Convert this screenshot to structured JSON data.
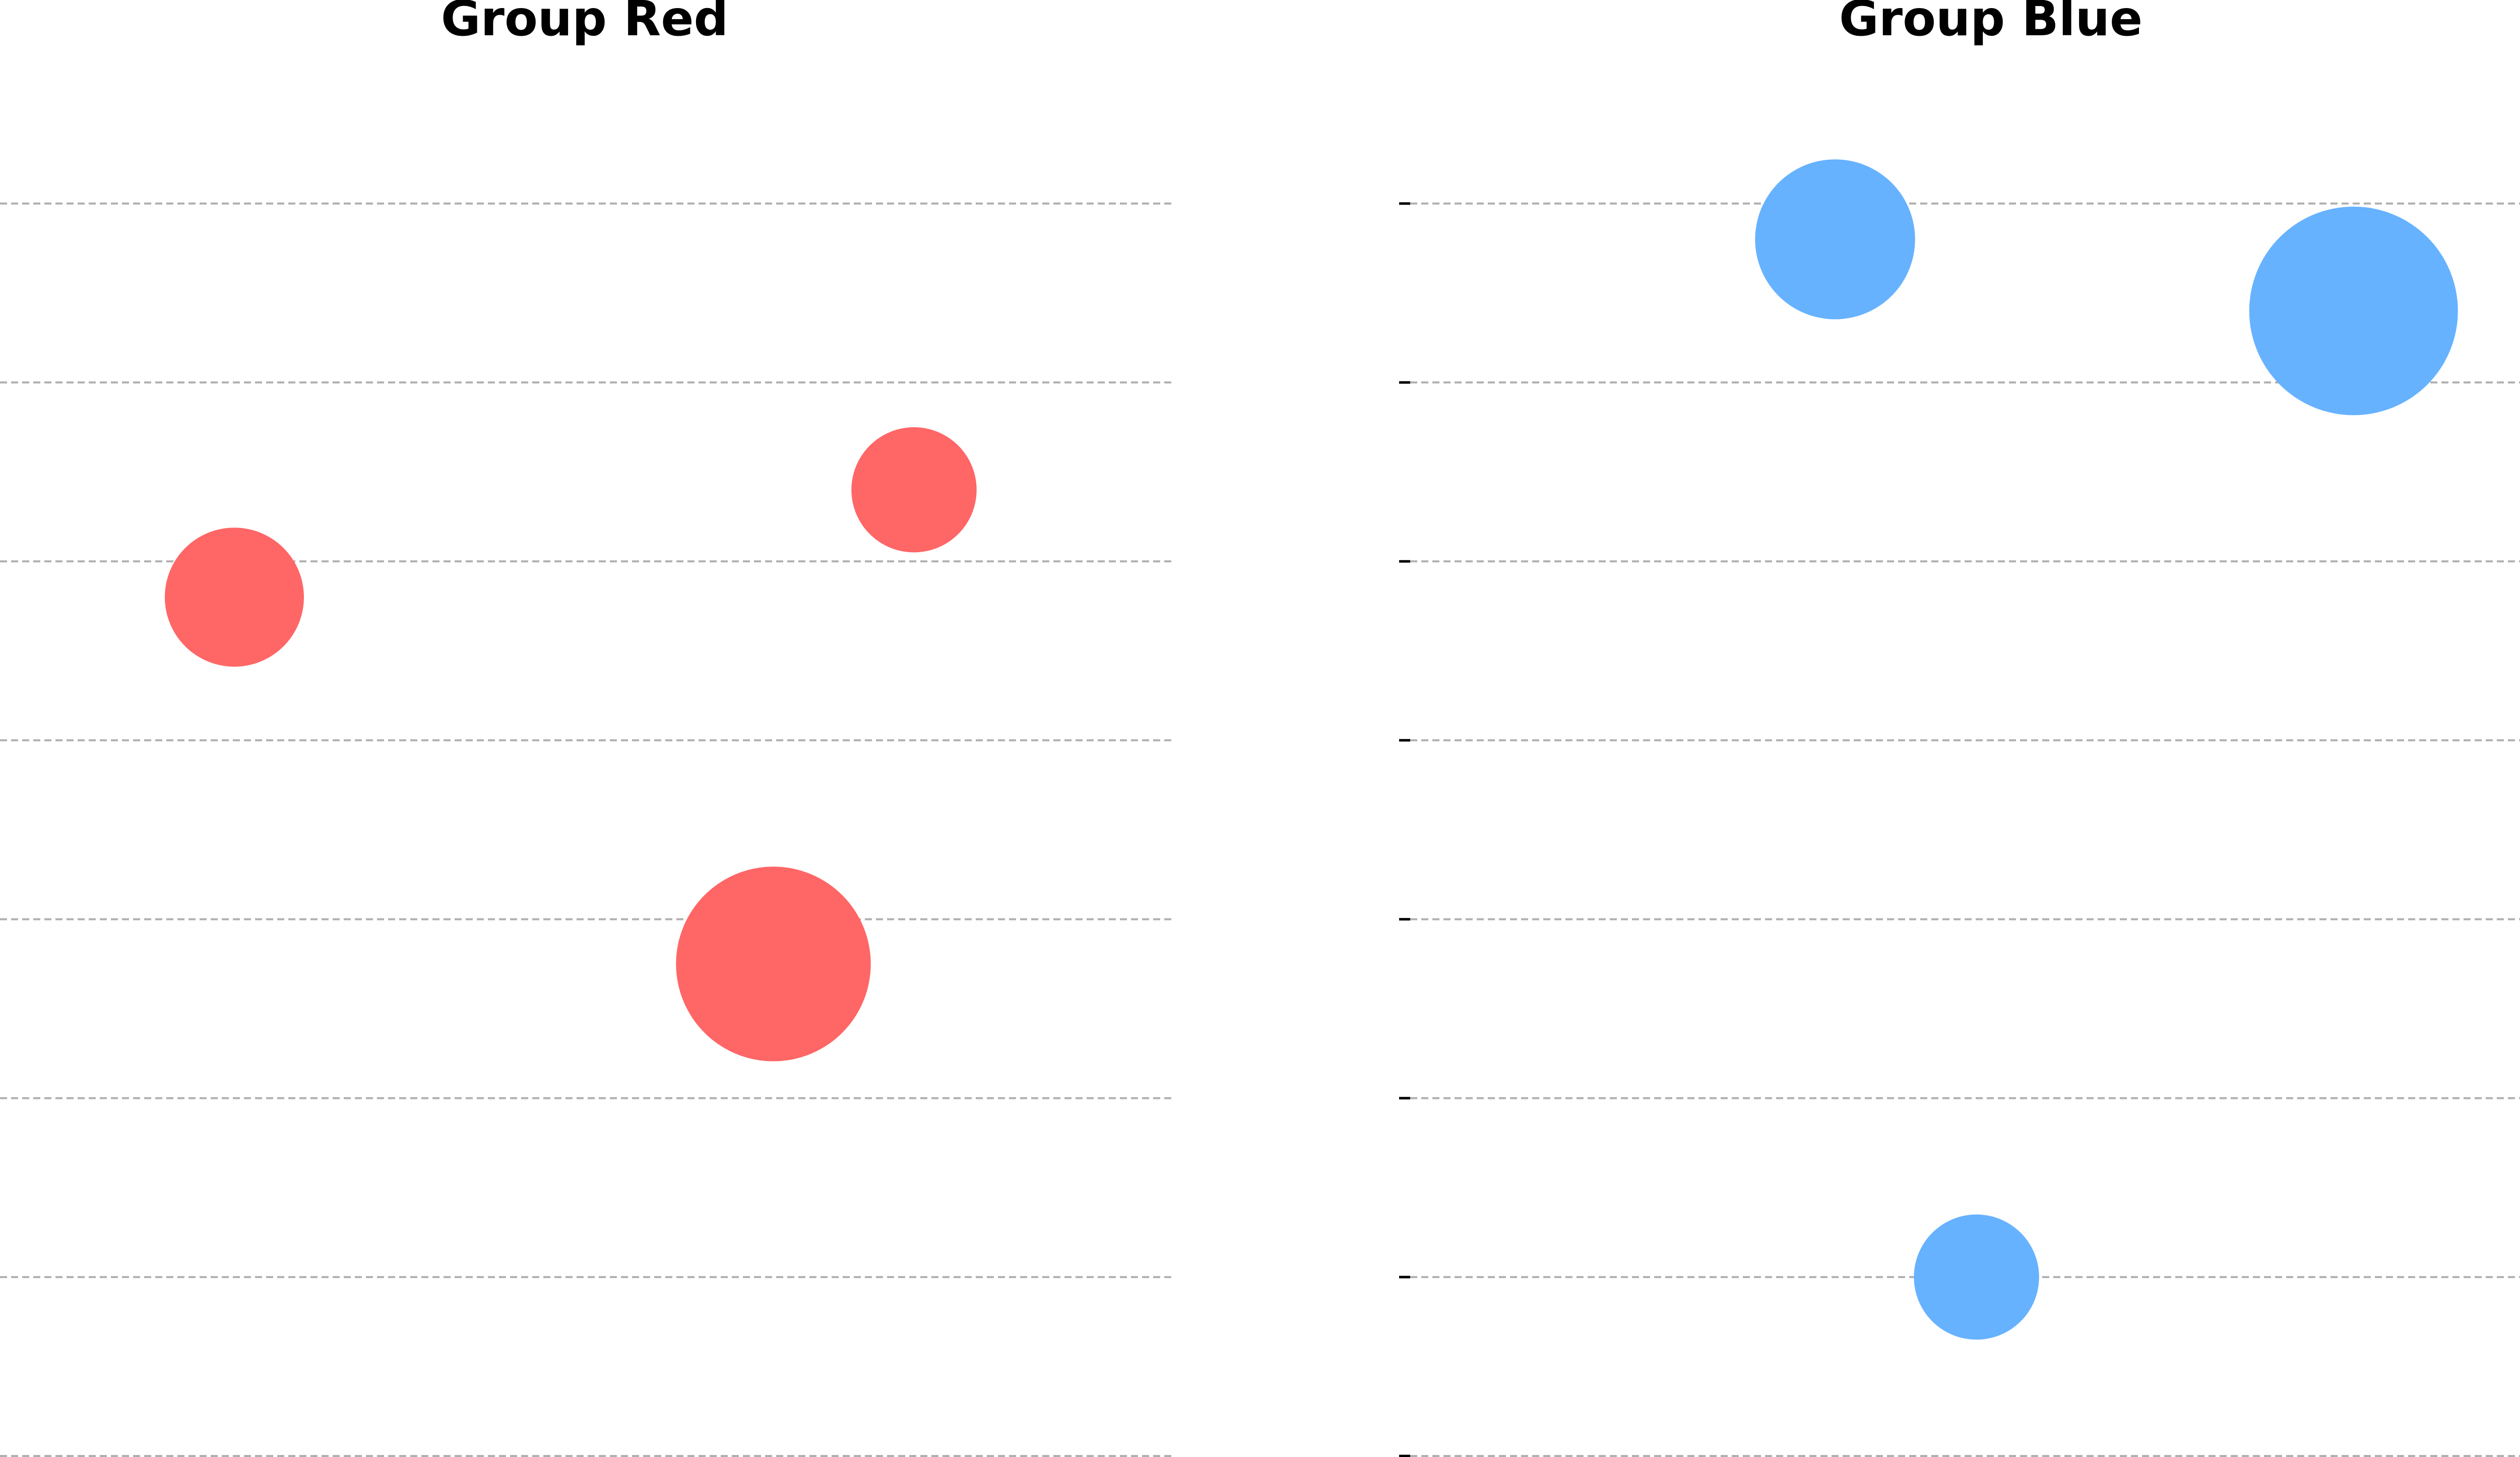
{
  "chart_data": [
    {
      "type": "scatter",
      "title": "Group Red",
      "color": "#ff6666",
      "ylim": [
        0,
        7
      ],
      "yticks": [
        0,
        1,
        2,
        3,
        4,
        5,
        6,
        7
      ],
      "xlim": [
        0,
        10
      ],
      "grid": "horizontal-dashed",
      "points": [
        {
          "x": 2.0,
          "y": 4.8,
          "size": 1
        },
        {
          "x": 7.8,
          "y": 5.4,
          "size": 0.9
        },
        {
          "x": 6.6,
          "y": 2.75,
          "size": 1.4
        }
      ]
    },
    {
      "type": "scatter",
      "title": "Group Blue",
      "color": "#66b2ff",
      "ylim": [
        0,
        7
      ],
      "yticks": [
        0,
        1,
        2,
        3,
        4,
        5,
        6,
        7
      ],
      "xlim": [
        0,
        10
      ],
      "grid": "horizontal-dashed",
      "points": [
        {
          "x": 3.7,
          "y": 6.8,
          "size": 1.15
        },
        {
          "x": 8.1,
          "y": 6.4,
          "size": 1.5
        },
        {
          "x": 4.9,
          "y": 1.0,
          "size": 0.9
        }
      ]
    }
  ]
}
